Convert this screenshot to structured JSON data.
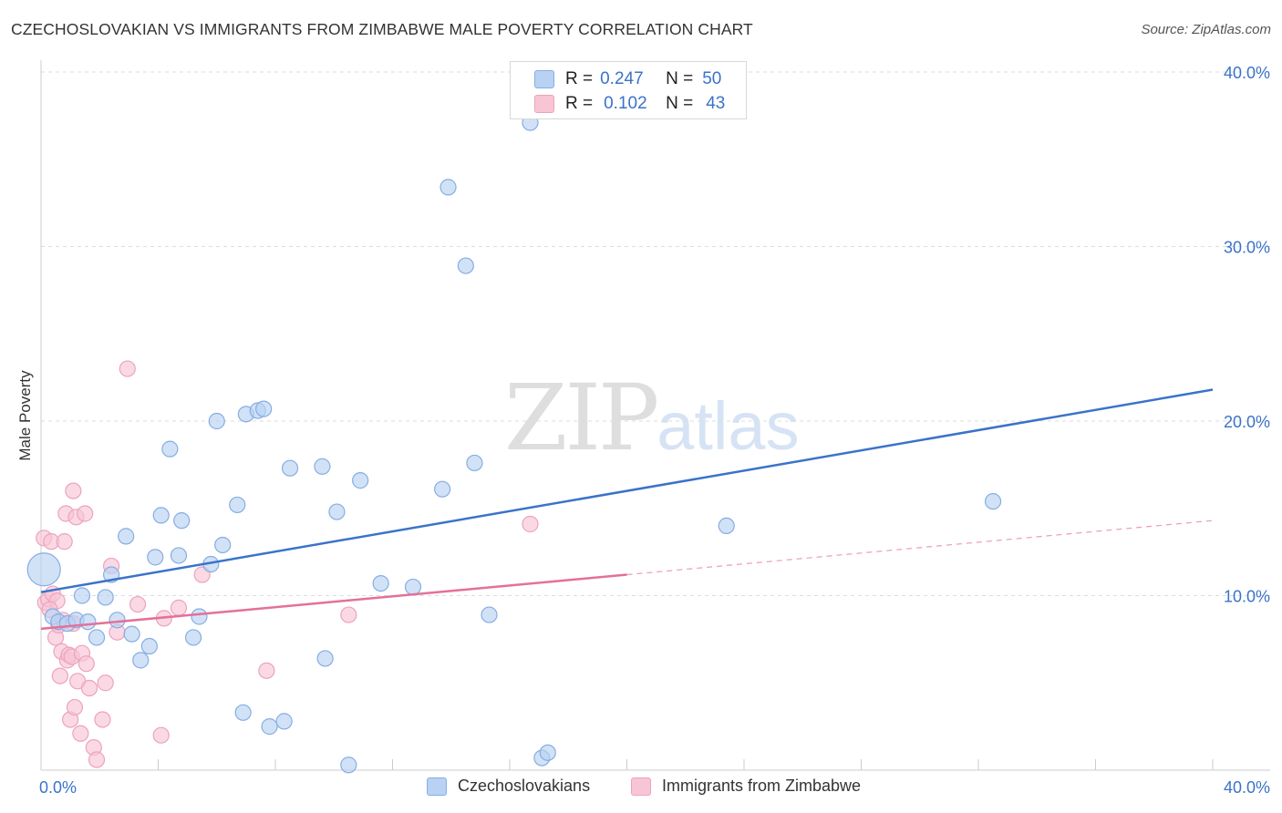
{
  "header": {
    "title": "CZECHOSLOVAKIAN VS IMMIGRANTS FROM ZIMBABWE MALE POVERTY CORRELATION CHART",
    "source": "Source: ZipAtlas.com"
  },
  "watermark": {
    "zip": "ZIP",
    "atlas": "atlas"
  },
  "legend": {
    "rows": [
      {
        "r_label": "R =",
        "r_value": "0.247",
        "n_label": "N =",
        "n_value": "50"
      },
      {
        "r_label": "R =",
        "r_value": "0.102",
        "n_label": "N =",
        "n_value": "43"
      }
    ]
  },
  "bottom_legend": {
    "items": [
      "Czechoslovakians",
      "Immigrants from Zimbabwe"
    ]
  },
  "colors": {
    "blue": "#3a73c9",
    "blue_fill": "#b9d2f3",
    "blue_stroke": "#86ade3",
    "pink": "#e4709a",
    "pink_fill": "#f8c5d5",
    "pink_stroke": "#eda3bc",
    "grid": "#dddddd",
    "axis_text": "#3a73c9"
  },
  "chart_data": {
    "type": "scatter",
    "title": "CZECHOSLOVAKIAN VS IMMIGRANTS FROM ZIMBABWE MALE POVERTY CORRELATION CHART",
    "xlabel": "",
    "ylabel": "Male Poverty",
    "xlim": [
      0,
      40
    ],
    "ylim": [
      0,
      40
    ],
    "x_tick_labels": [
      "0.0%",
      "40.0%"
    ],
    "y_ticks": [
      10,
      20,
      30,
      40
    ],
    "y_tick_labels": [
      "10.0%",
      "20.0%",
      "30.0%",
      "40.0%"
    ],
    "grid": true,
    "series": [
      {
        "name": "Czechoslovakians",
        "color": "blue",
        "R": 0.247,
        "N": 50,
        "trend": {
          "x": [
            0,
            40
          ],
          "y": [
            10.2,
            21.8
          ]
        },
        "points": [
          {
            "x": 0.1,
            "y": 11.5,
            "s": 3
          },
          {
            "x": 0.4,
            "y": 8.8,
            "s": 1
          },
          {
            "x": 0.6,
            "y": 8.5,
            "s": 1
          },
          {
            "x": 0.9,
            "y": 8.4,
            "s": 1
          },
          {
            "x": 1.2,
            "y": 8.6,
            "s": 1
          },
          {
            "x": 1.4,
            "y": 10.0,
            "s": 1
          },
          {
            "x": 1.6,
            "y": 8.5,
            "s": 1
          },
          {
            "x": 1.9,
            "y": 7.6,
            "s": 1
          },
          {
            "x": 2.2,
            "y": 9.9,
            "s": 1
          },
          {
            "x": 2.4,
            "y": 11.2,
            "s": 1
          },
          {
            "x": 2.6,
            "y": 8.6,
            "s": 1
          },
          {
            "x": 2.9,
            "y": 13.4,
            "s": 1
          },
          {
            "x": 3.1,
            "y": 7.8,
            "s": 1
          },
          {
            "x": 3.4,
            "y": 6.3,
            "s": 1
          },
          {
            "x": 3.7,
            "y": 7.1,
            "s": 1
          },
          {
            "x": 3.9,
            "y": 12.2,
            "s": 1
          },
          {
            "x": 4.1,
            "y": 14.6,
            "s": 1
          },
          {
            "x": 4.4,
            "y": 18.4,
            "s": 1
          },
          {
            "x": 4.7,
            "y": 12.3,
            "s": 1
          },
          {
            "x": 4.8,
            "y": 14.3,
            "s": 1
          },
          {
            "x": 5.2,
            "y": 7.6,
            "s": 1
          },
          {
            "x": 5.4,
            "y": 8.8,
            "s": 1
          },
          {
            "x": 5.8,
            "y": 11.8,
            "s": 1
          },
          {
            "x": 6.0,
            "y": 20.0,
            "s": 1
          },
          {
            "x": 6.2,
            "y": 12.9,
            "s": 1
          },
          {
            "x": 6.7,
            "y": 15.2,
            "s": 1
          },
          {
            "x": 6.9,
            "y": 3.3,
            "s": 1
          },
          {
            "x": 7.0,
            "y": 20.4,
            "s": 1
          },
          {
            "x": 7.4,
            "y": 20.6,
            "s": 1
          },
          {
            "x": 7.6,
            "y": 20.7,
            "s": 1
          },
          {
            "x": 7.8,
            "y": 2.5,
            "s": 1
          },
          {
            "x": 8.3,
            "y": 2.8,
            "s": 1
          },
          {
            "x": 8.5,
            "y": 17.3,
            "s": 1
          },
          {
            "x": 9.6,
            "y": 17.4,
            "s": 1
          },
          {
            "x": 9.7,
            "y": 6.4,
            "s": 1
          },
          {
            "x": 10.1,
            "y": 14.8,
            "s": 1
          },
          {
            "x": 10.5,
            "y": 0.3,
            "s": 1
          },
          {
            "x": 10.9,
            "y": 16.6,
            "s": 1
          },
          {
            "x": 11.6,
            "y": 10.7,
            "s": 1
          },
          {
            "x": 12.7,
            "y": 10.5,
            "s": 1
          },
          {
            "x": 13.7,
            "y": 16.1,
            "s": 1
          },
          {
            "x": 13.9,
            "y": 33.4,
            "s": 1
          },
          {
            "x": 14.5,
            "y": 28.9,
            "s": 1
          },
          {
            "x": 14.8,
            "y": 17.6,
            "s": 1
          },
          {
            "x": 15.3,
            "y": 8.9,
            "s": 1
          },
          {
            "x": 16.7,
            "y": 37.1,
            "s": 1
          },
          {
            "x": 17.1,
            "y": 0.7,
            "s": 1
          },
          {
            "x": 17.3,
            "y": 1.0,
            "s": 1
          },
          {
            "x": 23.4,
            "y": 14.0,
            "s": 1
          },
          {
            "x": 32.5,
            "y": 15.4,
            "s": 1
          }
        ]
      },
      {
        "name": "Immigrants from Zimbabwe",
        "color": "pink",
        "R": 0.102,
        "N": 43,
        "trend": {
          "x": [
            0,
            20
          ],
          "y": [
            8.1,
            11.2
          ]
        },
        "trend_dashed": {
          "x": [
            20,
            40
          ],
          "y": [
            11.2,
            14.3
          ]
        },
        "points": [
          {
            "x": 0.1,
            "y": 13.3,
            "s": 1
          },
          {
            "x": 0.15,
            "y": 9.6,
            "s": 1
          },
          {
            "x": 0.25,
            "y": 9.8,
            "s": 1
          },
          {
            "x": 0.35,
            "y": 13.1,
            "s": 1
          },
          {
            "x": 0.4,
            "y": 10.1,
            "s": 1
          },
          {
            "x": 0.5,
            "y": 7.6,
            "s": 1
          },
          {
            "x": 0.55,
            "y": 9.7,
            "s": 1
          },
          {
            "x": 0.6,
            "y": 8.3,
            "s": 1
          },
          {
            "x": 0.65,
            "y": 5.4,
            "s": 1
          },
          {
            "x": 0.7,
            "y": 6.8,
            "s": 1
          },
          {
            "x": 0.75,
            "y": 8.6,
            "s": 1
          },
          {
            "x": 0.8,
            "y": 13.1,
            "s": 1
          },
          {
            "x": 0.85,
            "y": 14.7,
            "s": 1
          },
          {
            "x": 0.9,
            "y": 6.3,
            "s": 1
          },
          {
            "x": 0.95,
            "y": 6.6,
            "s": 1
          },
          {
            "x": 1.0,
            "y": 2.9,
            "s": 1
          },
          {
            "x": 1.05,
            "y": 6.5,
            "s": 1
          },
          {
            "x": 1.1,
            "y": 8.4,
            "s": 1
          },
          {
            "x": 1.1,
            "y": 16.0,
            "s": 1
          },
          {
            "x": 1.15,
            "y": 3.6,
            "s": 1
          },
          {
            "x": 1.2,
            "y": 14.5,
            "s": 1
          },
          {
            "x": 1.25,
            "y": 5.1,
            "s": 1
          },
          {
            "x": 1.35,
            "y": 2.1,
            "s": 1
          },
          {
            "x": 1.4,
            "y": 6.7,
            "s": 1
          },
          {
            "x": 1.5,
            "y": 14.7,
            "s": 1
          },
          {
            "x": 1.55,
            "y": 6.1,
            "s": 1
          },
          {
            "x": 1.65,
            "y": 4.7,
            "s": 1
          },
          {
            "x": 1.8,
            "y": 1.3,
            "s": 1
          },
          {
            "x": 1.9,
            "y": 0.6,
            "s": 1
          },
          {
            "x": 2.1,
            "y": 2.9,
            "s": 1
          },
          {
            "x": 2.2,
            "y": 5.0,
            "s": 1
          },
          {
            "x": 2.4,
            "y": 11.7,
            "s": 1
          },
          {
            "x": 2.6,
            "y": 7.9,
            "s": 1
          },
          {
            "x": 2.95,
            "y": 23.0,
            "s": 1
          },
          {
            "x": 3.3,
            "y": 9.5,
            "s": 1
          },
          {
            "x": 4.1,
            "y": 2.0,
            "s": 1
          },
          {
            "x": 4.2,
            "y": 8.7,
            "s": 1
          },
          {
            "x": 4.7,
            "y": 9.3,
            "s": 1
          },
          {
            "x": 5.5,
            "y": 11.2,
            "s": 1
          },
          {
            "x": 7.7,
            "y": 5.7,
            "s": 1
          },
          {
            "x": 10.5,
            "y": 8.9,
            "s": 1
          },
          {
            "x": 16.7,
            "y": 14.1,
            "s": 1
          },
          {
            "x": 0.3,
            "y": 9.2,
            "s": 1
          }
        ]
      }
    ]
  }
}
